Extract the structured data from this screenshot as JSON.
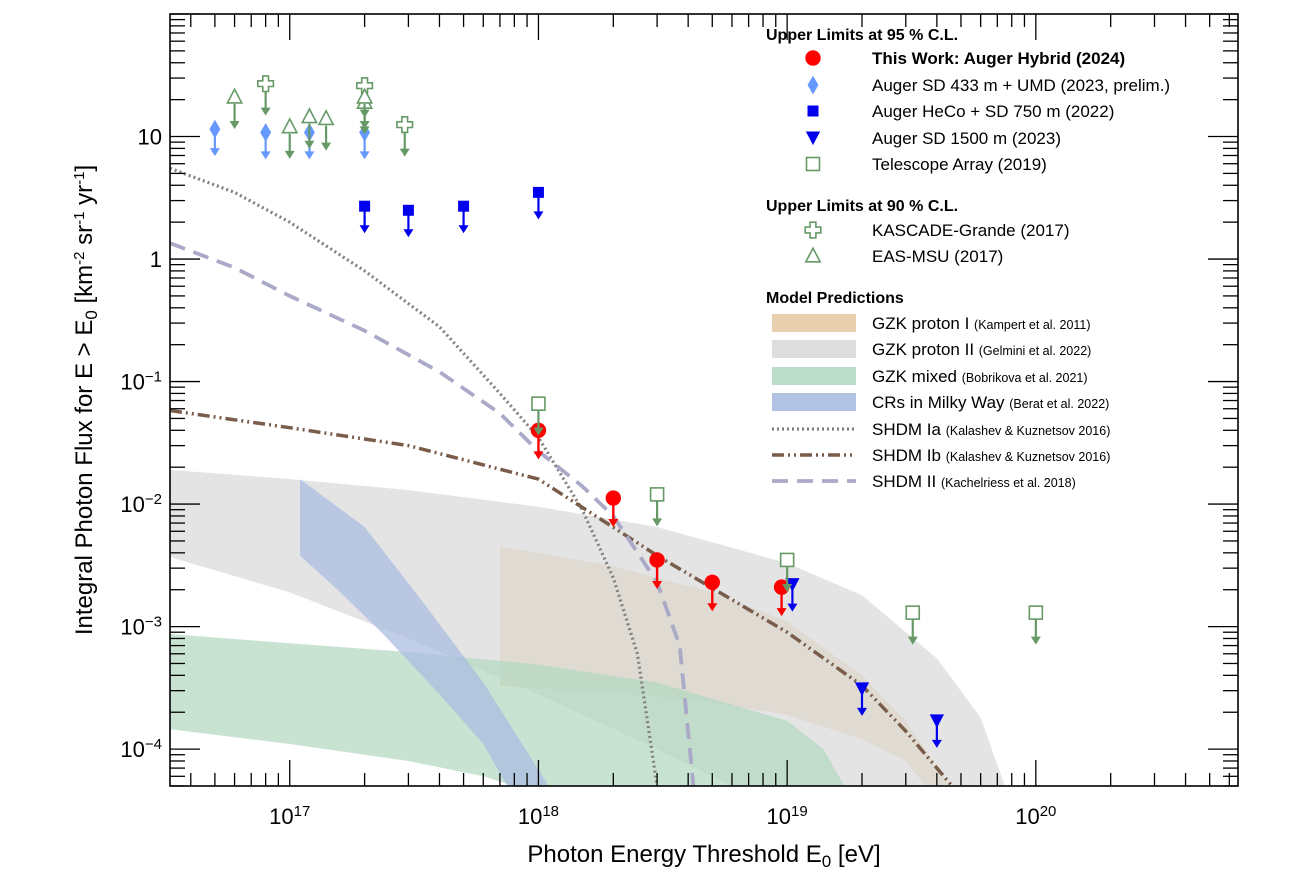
{
  "chart_data": {
    "type": "scatter",
    "x_scale": "log",
    "y_scale": "log",
    "xlim": [
      3.3e+16,
      6.5e+20
    ],
    "ylim": [
      5e-05,
      100
    ],
    "grid": false,
    "legend_position": "top-right",
    "xlabel": "Photon Energy Threshold E",
    "xlabel_sub": "0",
    "xlabel_unit": " [eV]",
    "ylabel": {
      "main": "Integral Photon Flux for E > E",
      "sub": "0",
      "unit_open": " [km",
      "sup1": "-2",
      "mid1": " sr",
      "sup2": "-1",
      "mid2": " yr",
      "sup3": "-1",
      "close": "]"
    },
    "x_ticks": [
      {
        "value": 1e+17,
        "base": "10",
        "exp": "17"
      },
      {
        "value": 1e+18,
        "base": "10",
        "exp": "18"
      },
      {
        "value": 1e+19,
        "base": "10",
        "exp": "19"
      },
      {
        "value": 1e+20,
        "base": "10",
        "exp": "20"
      }
    ],
    "y_ticks": [
      {
        "value": 10,
        "base": "10",
        "exp": ""
      },
      {
        "value": 1,
        "base": "1",
        "exp": ""
      },
      {
        "value": 0.1,
        "base": "10",
        "exp": "−1"
      },
      {
        "value": 0.01,
        "base": "10",
        "exp": "−2"
      },
      {
        "value": 0.001,
        "base": "10",
        "exp": "−3"
      },
      {
        "value": 0.0001,
        "base": "10",
        "exp": "−4"
      }
    ],
    "legend": {
      "header_95": "Upper Limits at 95 % C.L.",
      "header_90": "Upper Limits at 90 % C.L.",
      "header_models": "Model Predictions"
    },
    "series": [
      {
        "name": "This Work: Auger Hybrid (2024)",
        "bold": true,
        "marker": "circle",
        "color": "#ff0000",
        "points": [
          [
            1e+18,
            0.04
          ],
          [
            2e+18,
            0.0112
          ],
          [
            3e+18,
            0.0035
          ],
          [
            5e+18,
            0.0023
          ],
          [
            9.5e+18,
            0.0021
          ]
        ]
      },
      {
        "name": "Auger SD 433 m + UMD (2023, prelim.)",
        "marker": "diamond",
        "color": "#6699ff",
        "points": [
          [
            5e+16,
            11.5
          ],
          [
            8e+16,
            10.8
          ],
          [
            1.2e+17,
            10.8
          ],
          [
            2e+17,
            10.8
          ]
        ]
      },
      {
        "name": "Auger HeCo + SD 750 m (2022)",
        "marker": "square",
        "color": "#0000ee",
        "points": [
          [
            2e+17,
            2.7
          ],
          [
            3e+17,
            2.5
          ],
          [
            5e+17,
            2.7
          ],
          [
            1e+18,
            3.5
          ]
        ]
      },
      {
        "name": "Auger SD 1500 m (2023)",
        "marker": "triangle-down",
        "color": "#0000ee",
        "points": [
          [
            1.05e+19,
            0.0022
          ],
          [
            2e+19,
            0.00031
          ],
          [
            4e+19,
            0.00017
          ]
        ]
      },
      {
        "name": "Telescope Array (2019)",
        "marker": "open-square",
        "color": "#669966",
        "points": [
          [
            1e+18,
            0.066
          ],
          [
            3e+18,
            0.012
          ],
          [
            1e+19,
            0.0035
          ],
          [
            3.2e+19,
            0.0013
          ],
          [
            1e+20,
            0.0013
          ]
        ]
      },
      {
        "name": "KASCADE-Grande (2017)",
        "marker": "open-cross",
        "color": "#669966",
        "points": [
          [
            8e+16,
            27
          ],
          [
            2e+17,
            26
          ],
          [
            2.9e+17,
            12.5
          ]
        ]
      },
      {
        "name": "EAS-MSU (2017)",
        "marker": "open-triangle",
        "color": "#669966",
        "points": [
          [
            6e+16,
            21
          ],
          [
            1e+17,
            12
          ],
          [
            1.2e+17,
            14.5
          ],
          [
            1.4e+17,
            14
          ],
          [
            2e+17,
            19
          ],
          [
            2e+17,
            21
          ]
        ]
      }
    ],
    "models": [
      {
        "name": "GZK proton I",
        "ref": "(Kampert et al. 2011)",
        "kind": "band",
        "color": "#e6cba6",
        "upper": [
          [
            7e+17,
            0.0045
          ],
          [
            1e+18,
            0.004
          ],
          [
            2e+18,
            0.0031
          ],
          [
            5e+18,
            0.0019
          ],
          [
            1e+19,
            0.0011
          ],
          [
            2e+19,
            0.0004
          ],
          [
            3e+19,
            0.00017
          ],
          [
            4.5e+19,
            5e-05
          ]
        ],
        "lower": [
          [
            7e+17,
            0.00033
          ],
          [
            1e+18,
            0.00031
          ],
          [
            2e+18,
            0.00029
          ],
          [
            5e+18,
            0.00024
          ],
          [
            1e+19,
            0.00019
          ],
          [
            2e+19,
            0.00012
          ],
          [
            3e+19,
            8e-05
          ],
          [
            3.6e+19,
            5e-05
          ]
        ]
      },
      {
        "name": "GZK proton II",
        "ref": "(Gelmini et al. 2022)",
        "kind": "band",
        "color": "#d9d9d9",
        "upper": [
          [
            3.3e+16,
            0.019
          ],
          [
            1e+17,
            0.016
          ],
          [
            3e+17,
            0.013
          ],
          [
            1e+18,
            0.0095
          ],
          [
            3e+18,
            0.0065
          ],
          [
            1e+19,
            0.0033
          ],
          [
            2e+19,
            0.0018
          ],
          [
            4e+19,
            0.00055
          ],
          [
            6e+19,
            0.00018
          ],
          [
            7.5e+19,
            5e-05
          ]
        ],
        "lower": [
          [
            3.3e+16,
            0.0037
          ],
          [
            1e+17,
            0.0019
          ],
          [
            3e+17,
            0.0008
          ],
          [
            1e+18,
            0.00028
          ],
          [
            3e+18,
            0.0001
          ],
          [
            6e+18,
            5e-05
          ]
        ]
      },
      {
        "name": "GZK mixed",
        "ref": "(Bobrikova et al. 2021)",
        "kind": "band",
        "color": "#b4d8c2",
        "upper": [
          [
            3.3e+16,
            0.00087
          ],
          [
            1e+17,
            0.00073
          ],
          [
            3e+17,
            0.00062
          ],
          [
            1e+18,
            0.00049
          ],
          [
            3e+18,
            0.00035
          ],
          [
            1e+19,
            0.00017
          ],
          [
            1.4e+19,
            0.0001
          ],
          [
            1.7e+19,
            5e-05
          ]
        ],
        "lower": [
          [
            3.3e+16,
            0.000145
          ],
          [
            1e+17,
            0.00011
          ],
          [
            3e+17,
            8e-05
          ],
          [
            6e+17,
            6e-05
          ],
          [
            8e+17,
            5e-05
          ]
        ]
      },
      {
        "name": "CRs in Milky Way",
        "ref": "(Berat et al. 2022)",
        "kind": "band",
        "color": "#a9bbe0",
        "upper": [
          [
            1.1e+17,
            0.016
          ],
          [
            2e+17,
            0.0065
          ],
          [
            3.5e+17,
            0.0015
          ],
          [
            6e+17,
            0.00035
          ],
          [
            1.1e+18,
            5e-05
          ]
        ],
        "lower": [
          [
            1.1e+17,
            0.0038
          ],
          [
            1.6e+17,
            0.0019
          ],
          [
            2.4e+17,
            0.00085
          ],
          [
            4e+17,
            0.00028
          ],
          [
            6e+17,
            0.00011
          ],
          [
            7.5e+17,
            5e-05
          ]
        ]
      },
      {
        "name": "SHDM Ia",
        "ref": "(Kalashev & Kuznetsov 2016)",
        "kind": "line",
        "color": "#808080",
        "dash": "2,3",
        "width": 3.2,
        "points": [
          [
            3.3e+16,
            5.5
          ],
          [
            6e+16,
            3.5
          ],
          [
            1e+17,
            2.0
          ],
          [
            2e+17,
            0.8
          ],
          [
            4e+17,
            0.28
          ],
          [
            7e+17,
            0.08
          ],
          [
            1e+18,
            0.035
          ],
          [
            1.5e+18,
            0.009
          ],
          [
            2e+18,
            0.0025
          ],
          [
            2.5e+18,
            0.0006
          ],
          [
            3e+18,
            5e-05
          ]
        ]
      },
      {
        "name": "SHDM Ib",
        "ref": "(Kalashev & Kuznetsov 2016)",
        "kind": "line",
        "color": "#7a5c4a",
        "dash": "12,4,2,4,2,4",
        "width": 3.5,
        "points": [
          [
            3.3e+16,
            0.058
          ],
          [
            1e+17,
            0.042
          ],
          [
            3e+17,
            0.03
          ],
          [
            1e+18,
            0.016
          ],
          [
            3e+18,
            0.0038
          ],
          [
            1e+19,
            0.0009
          ],
          [
            2e+19,
            0.00033
          ],
          [
            3e+19,
            0.00014
          ],
          [
            4.6e+19,
            5e-05
          ]
        ]
      },
      {
        "name": "SHDM II",
        "ref": "(Kachelriess et al. 2018)",
        "kind": "line",
        "color": "#aaaac8",
        "dash": "16,9",
        "width": 3.8,
        "points": [
          [
            3.3e+16,
            1.35
          ],
          [
            6e+16,
            0.85
          ],
          [
            1e+17,
            0.5
          ],
          [
            2e+17,
            0.26
          ],
          [
            4e+17,
            0.12
          ],
          [
            7e+17,
            0.055
          ],
          [
            1e+18,
            0.027
          ],
          [
            1.5e+18,
            0.014
          ],
          [
            2e+18,
            0.008
          ],
          [
            3e+18,
            0.0023
          ],
          [
            3.7e+18,
            0.0007
          ],
          [
            4.2e+18,
            5e-05
          ]
        ]
      }
    ]
  }
}
